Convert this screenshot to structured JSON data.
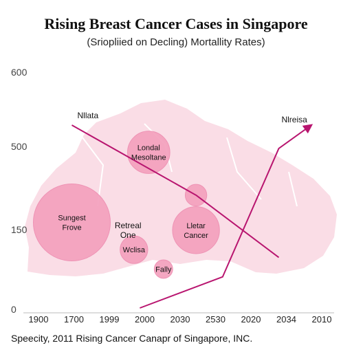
{
  "chart_data": {
    "type": "scatter",
    "title": "Rising Breast Cancer Cases in Singapore",
    "subtitle": "(Sriopliied on Decling) Mortallity Rates)",
    "footer": "Speecity, 2011 Rising Cancer Canapr of Singapore, INC.",
    "y_ticks": [
      "600",
      "500",
      "150",
      "0"
    ],
    "x_ticks": [
      "1900",
      "1700",
      "1999",
      "2000",
      "2030",
      "2530",
      "2020",
      "2034",
      "2010"
    ],
    "grid": false,
    "legend": "none",
    "colors": {
      "bubble": "#f4a3bf",
      "bubble_stroke": "#ee8fb2",
      "line": "#b8156f",
      "map": "#fadde6",
      "axis": "#bbbbbb"
    },
    "bubbles": [
      {
        "x": 1.5,
        "y": 2.2,
        "size": 1.0,
        "label": [
          "Sungest",
          "Frove"
        ]
      },
      {
        "x": 4.1,
        "y": 4.0,
        "size": 0.55,
        "label": [
          "Londal",
          "Mesoltane"
        ]
      },
      {
        "x": 5.7,
        "y": 2.0,
        "size": 0.61,
        "label": [
          "Lletar",
          "Cancer"
        ]
      },
      {
        "x": 5.7,
        "y": 2.9,
        "size": 0.28,
        "label": []
      },
      {
        "x": 3.6,
        "y": 1.5,
        "size": 0.36,
        "label": [
          "Wclisa"
        ]
      },
      {
        "x": 4.6,
        "y": 1.0,
        "size": 0.24,
        "label": [
          "Fally"
        ]
      }
    ],
    "annotations": [
      {
        "x": 3.4,
        "y": 2.0,
        "text": [
          "Retreal",
          "One"
        ]
      }
    ],
    "series": [
      {
        "name": "Nllata",
        "x": [
          1.5,
          5.7,
          8.5
        ],
        "y": [
          4.7,
          2.9,
          1.3
        ]
      },
      {
        "name": "Nlreisa",
        "x": [
          3.8,
          6.6,
          8.5,
          9.6
        ],
        "y": [
          0.0,
          0.8,
          4.1,
          4.7
        ]
      }
    ]
  }
}
